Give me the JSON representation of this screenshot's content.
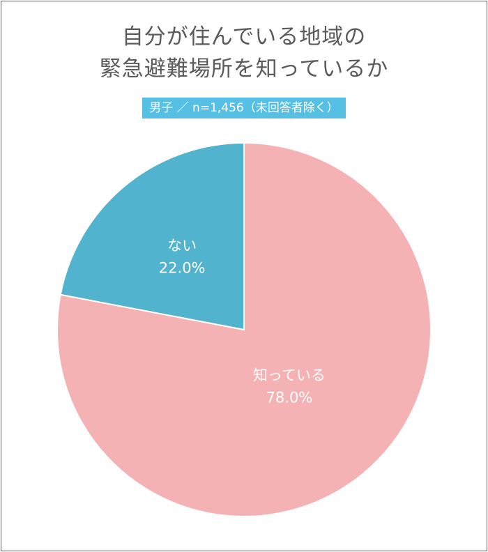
{
  "title_lines": [
    "自分が住んでいる地域の",
    "緊急避難場所を知っているか"
  ],
  "subtitle": "男子 ／ n=1,456（未回答者除く）",
  "colors": {
    "title_text": "#5b5b5b",
    "subtitle_bg": "#56bfe4",
    "slice_know": "#f5b2b4",
    "slice_dont_know": "#52b3ce",
    "label_text": "#ffffff"
  },
  "chart_data": {
    "type": "pie",
    "title": "自分が住んでいる地域の緊急避難場所を知っているか",
    "subtitle": "男子 ／ n=1,456（未回答者除く）",
    "start": "12 o'clock",
    "direction": "clockwise",
    "slices": [
      {
        "label": "知っている",
        "value": 78.0,
        "value_label": "78.0%",
        "color": "#f5b2b4"
      },
      {
        "label": "ない",
        "value": 22.0,
        "value_label": "22.0%",
        "color": "#52b3ce"
      }
    ]
  }
}
